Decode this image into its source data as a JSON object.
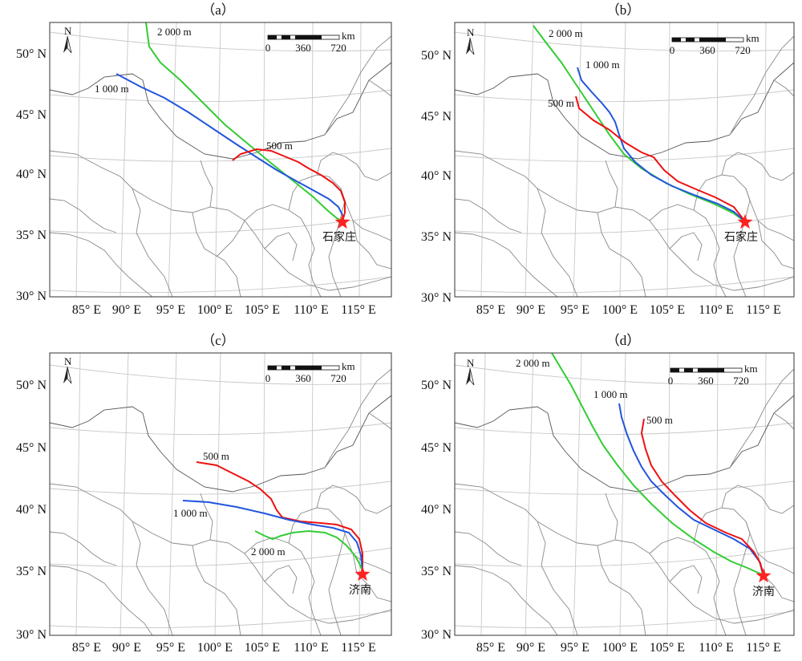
{
  "panels": [
    {
      "title": "（a）",
      "city": "石家庄",
      "labels": {
        "2000": "2 000 m",
        "1000": "1 000 m",
        "500": "500 m"
      }
    },
    {
      "title": "（b）",
      "city": "石家庄",
      "labels": {
        "2000": "2 000 m",
        "1000": "1 000 m",
        "500": "500 m"
      }
    },
    {
      "title": "（c）",
      "city": "济南",
      "labels": {
        "2000": "2 000 m",
        "1000": "1 000 m",
        "500": "500 m"
      }
    },
    {
      "title": "（d）",
      "city": "济南",
      "labels": {
        "2000": "2 000 m",
        "1000": "1 000 m",
        "500": "500 m"
      }
    }
  ],
  "axes": {
    "lat_ticks": [
      "50° N",
      "45° N",
      "40° N",
      "35° N",
      "30° N"
    ],
    "lon_ticks": [
      "85° E",
      "90° E",
      "95° E",
      "100° E",
      "105° E",
      "110° E",
      "115° E"
    ]
  },
  "scale_bar": {
    "unit": "km",
    "labels": [
      "0",
      "360",
      "720"
    ]
  },
  "north_arrow": {
    "label": "N"
  },
  "colors": {
    "h2000": "#33cc33",
    "h1000": "#2255dd",
    "h500": "#ee1111",
    "star": "#ff2222"
  }
}
